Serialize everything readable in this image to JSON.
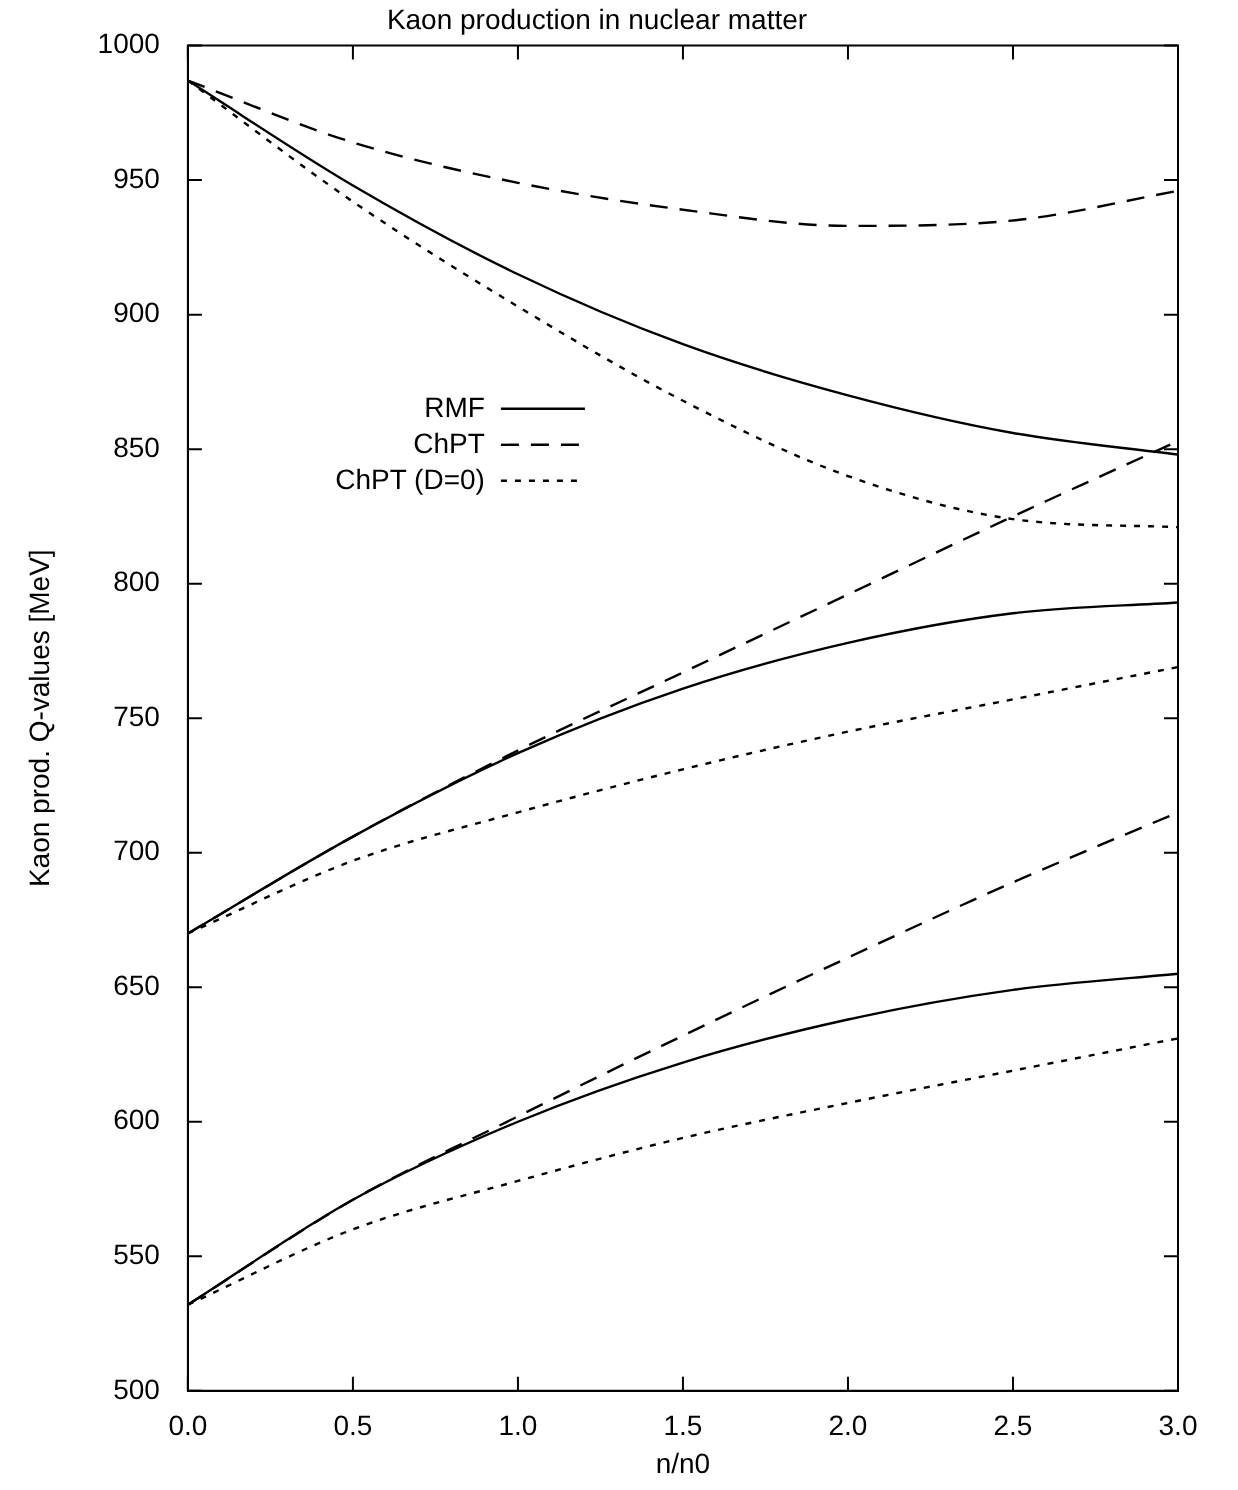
{
  "chart_data": {
    "type": "line",
    "title": "Kaon production in nuclear matter",
    "xlabel": "n/n0",
    "ylabel": "Kaon prod. Q-values [MeV]",
    "x": [
      0,
      0.5,
      1,
      1.5,
      2,
      2.5,
      3
    ],
    "xlim": [
      0,
      3
    ],
    "xticks": [
      {
        "value": 0,
        "label": "0.0"
      },
      {
        "value": 0.5,
        "label": "0.5"
      },
      {
        "value": 1,
        "label": "1.0"
      },
      {
        "value": 1.5,
        "label": "1.5"
      },
      {
        "value": 2,
        "label": "2.0"
      },
      {
        "value": 2.5,
        "label": "2.5"
      },
      {
        "value": 3,
        "label": "3.0"
      }
    ],
    "ylim": [
      500,
      1000
    ],
    "yticks": [
      500,
      550,
      600,
      650,
      700,
      750,
      800,
      850,
      900,
      950,
      1000
    ],
    "grid": false,
    "legend": "top left",
    "marker": "none",
    "series": [
      {
        "name": "RMF",
        "color": "#000000",
        "line_style": "solid",
        "values": [
          987,
          948,
          915,
          889,
          870,
          856,
          848
        ]
      },
      {
        "name": "ChPT",
        "color": "#000000",
        "line_style": "dashed",
        "values": [
          987,
          964,
          949,
          939,
          933,
          935,
          946
        ]
      },
      {
        "name": "ChPT (D=0)",
        "color": "#000000",
        "line_style": "dotted",
        "values": [
          987,
          942,
          903,
          868,
          840,
          824,
          821
        ]
      },
      {
        "color": "#000000",
        "line_style": "solid",
        "values": [
          670,
          706,
          737,
          761,
          778,
          789,
          793
        ]
      },
      {
        "color": "#000000",
        "line_style": "dashed",
        "values": [
          670,
          706,
          738,
          767,
          796,
          825,
          853
        ]
      },
      {
        "color": "#000000",
        "line_style": "dotted",
        "values": [
          670,
          697,
          715,
          731,
          745,
          757,
          769
        ]
      },
      {
        "color": "#000000",
        "line_style": "solid",
        "values": [
          532,
          571,
          600,
          622,
          638,
          649,
          655
        ]
      },
      {
        "color": "#000000",
        "line_style": "dashed",
        "values": [
          532,
          571,
          602,
          632,
          661,
          689,
          715
        ]
      },
      {
        "color": "#000000",
        "line_style": "dotted",
        "values": [
          532,
          560,
          578,
          594,
          607,
          619,
          631
        ]
      }
    ]
  }
}
